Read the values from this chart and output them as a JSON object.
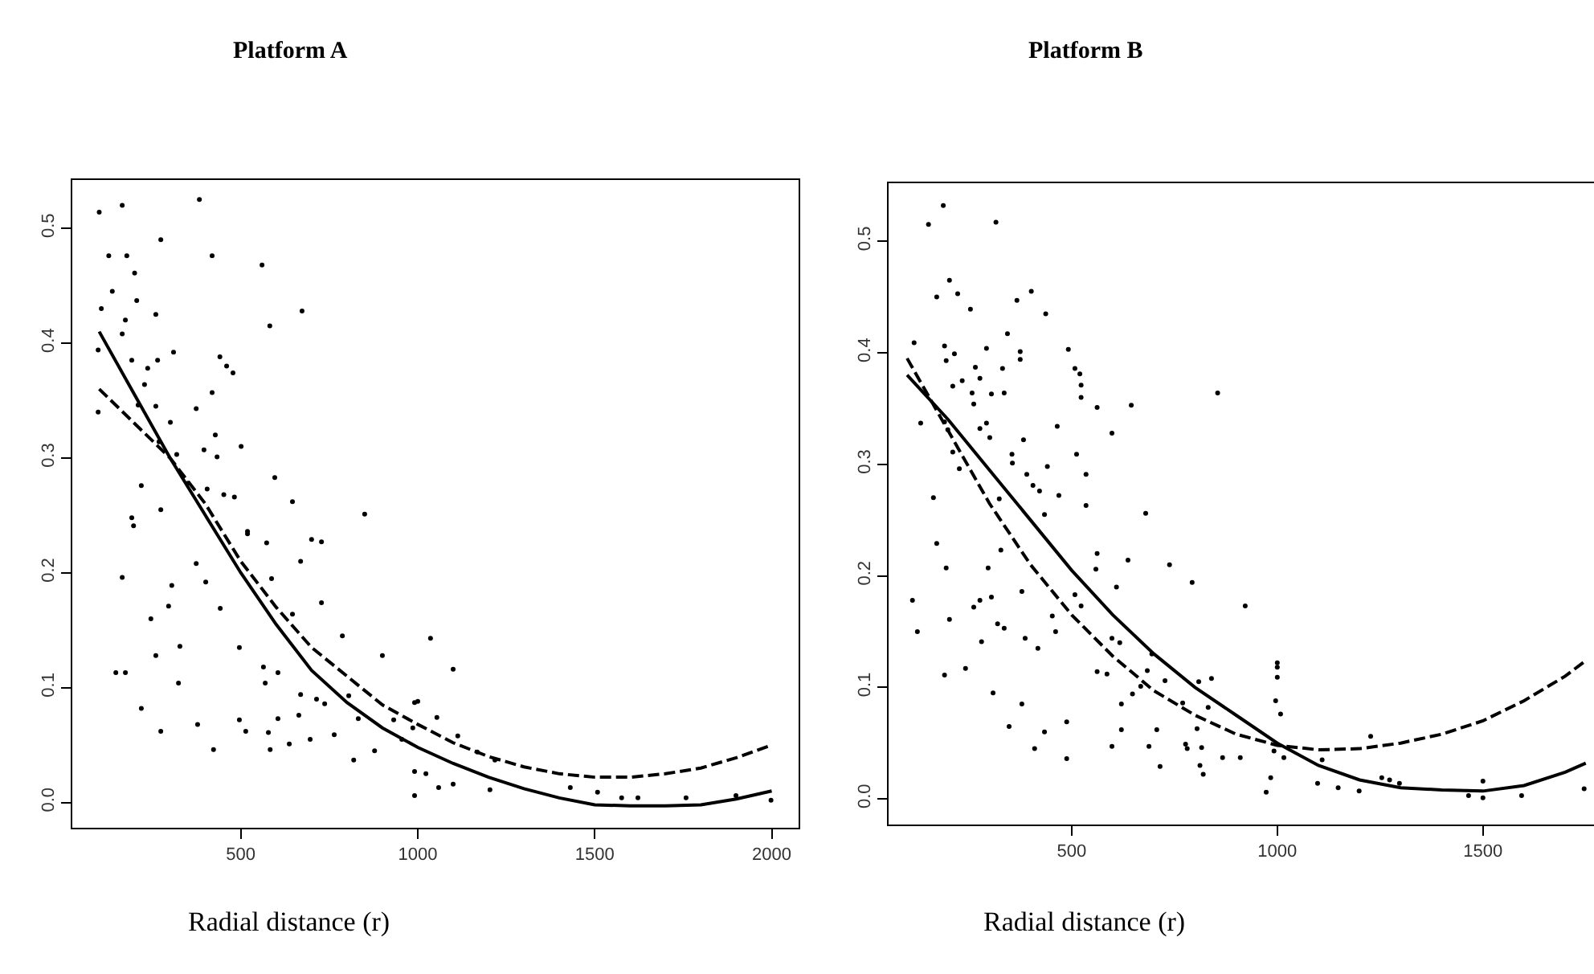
{
  "chart_data": [
    {
      "type": "scatter",
      "title": "Platform A",
      "xlabel": "Radial distance (r)",
      "xlim": [
        24,
        2076
      ],
      "ylim": [
        -0.022,
        0.542
      ],
      "xticks": [
        500,
        1000,
        1500,
        2000
      ],
      "yticks": [
        {
          "value": 0,
          "label": "0.0"
        },
        0.1,
        0.2,
        0.3,
        0.4,
        0.5
      ],
      "series": [
        {
          "marker": "circle",
          "color": "#000000",
          "x": [
            100,
            165,
            383,
            274,
            127,
            178,
            419,
            560,
            200,
            137,
            206,
            673,
            106,
            174,
            260,
            582,
            97,
            165,
            192,
            310,
            265,
            237,
            441,
            478,
            460,
            228,
            419,
            210,
            260,
            97,
            374,
            301,
            428,
            269,
            396,
            501,
            433,
            319,
            596,
            452,
            482,
            405,
            219,
            351,
            646,
            850,
            197,
            192,
            274,
            519,
            573,
            700,
            728,
            165,
            305,
            296,
            246,
            328,
            260,
            147,
            174,
            324,
            219,
            274,
            401,
            374,
            442,
            496,
            519,
            587,
            669,
            728,
            787,
            900,
            564,
            605,
            569,
            646,
            378,
            423,
            496,
            514,
            578,
            605,
            664,
            637,
            696,
            714,
            737,
            764,
            805,
            832,
            819,
            878,
            932,
            955,
            991,
            669,
            583,
            1036,
            1100,
            1000,
            1054,
            986,
            1113,
            991,
            1023,
            1059,
            1100,
            991,
            1204,
            1168,
            1218,
            1431,
            1508,
            1622,
            1758,
            1998,
            1576,
            1899
          ],
          "values": [
            0.514,
            0.52,
            0.525,
            0.49,
            0.476,
            0.476,
            0.476,
            0.468,
            0.461,
            0.445,
            0.437,
            0.428,
            0.43,
            0.42,
            0.425,
            0.415,
            0.394,
            0.408,
            0.385,
            0.392,
            0.385,
            0.378,
            0.388,
            0.374,
            0.38,
            0.364,
            0.357,
            0.346,
            0.345,
            0.34,
            0.343,
            0.331,
            0.32,
            0.314,
            0.307,
            0.31,
            0.301,
            0.303,
            0.283,
            0.268,
            0.266,
            0.273,
            0.276,
            0.278,
            0.262,
            0.251,
            0.241,
            0.248,
            0.255,
            0.236,
            0.226,
            0.229,
            0.227,
            0.196,
            0.189,
            0.171,
            0.16,
            0.136,
            0.128,
            0.113,
            0.113,
            0.104,
            0.082,
            0.062,
            0.192,
            0.208,
            0.169,
            0.135,
            0.234,
            0.195,
            0.21,
            0.174,
            0.145,
            0.128,
            0.118,
            0.113,
            0.104,
            0.164,
            0.068,
            0.046,
            0.072,
            0.062,
            0.061,
            0.073,
            0.076,
            0.051,
            0.055,
            0.09,
            0.086,
            0.059,
            0.093,
            0.073,
            0.037,
            0.045,
            0.072,
            0.055,
            0.087,
            0.094,
            0.046,
            0.143,
            0.116,
            0.088,
            0.074,
            0.065,
            0.058,
            0.027,
            0.025,
            0.013,
            0.016,
            0.006,
            0.011,
            0.044,
            0.037,
            0.013,
            0.009,
            0.004,
            0.004,
            0.002,
            0.004,
            0.006
          ]
        },
        {
          "type": "line",
          "color": "#000000",
          "line_style": "solid",
          "x": [
            100,
            200,
            300,
            400,
            500,
            600,
            700,
            800,
            900,
            1000,
            1100,
            1200,
            1300,
            1400,
            1500,
            1600,
            1700,
            1800,
            1900,
            2000
          ],
          "values": [
            0.41,
            0.355,
            0.3,
            0.25,
            0.2,
            0.155,
            0.115,
            0.087,
            0.065,
            0.048,
            0.034,
            0.022,
            0.012,
            0.004,
            -0.002,
            -0.003,
            -0.003,
            -0.002,
            0.003,
            0.01
          ]
        },
        {
          "type": "line",
          "color": "#000000",
          "line_style": "dashed",
          "x": [
            100,
            200,
            300,
            400,
            500,
            600,
            700,
            800,
            900,
            1000,
            1100,
            1200,
            1300,
            1400,
            1500,
            1600,
            1700,
            1800,
            1900,
            2000
          ],
          "values": [
            0.36,
            0.33,
            0.3,
            0.26,
            0.21,
            0.17,
            0.135,
            0.11,
            0.085,
            0.068,
            0.052,
            0.04,
            0.031,
            0.025,
            0.022,
            0.022,
            0.025,
            0.03,
            0.039,
            0.05
          ]
        }
      ]
    },
    {
      "type": "scatter",
      "title": "Platform B",
      "xlabel": "Radial distance (r)",
      "xlim": [
        55,
        1770
      ],
      "ylim": [
        -0.023,
        0.552
      ],
      "xticks": [
        500,
        1000,
        1500
      ],
      "yticks": [
        {
          "value": 0,
          "label": "0.0"
        },
        0.1,
        0.2,
        0.3,
        0.4,
        0.5
      ],
      "series": [
        {
          "marker": "circle",
          "color": "#000000",
          "x": [
            188,
            152,
            316,
            172,
            203,
            223,
            254,
            367,
            402,
            437,
            117,
            191,
            195,
            215,
            293,
            344,
            375,
            375,
            492,
            508,
            520,
            523,
            523,
            562,
            645,
            855,
            598,
            512,
            535,
            535,
            680,
            465,
            441,
            469,
            391,
            406,
            383,
            355,
            356,
            133,
            164,
            172,
            234,
            266,
            277,
            258,
            305,
            262,
            332,
            336,
            293,
            277,
            301,
            211,
            191,
            199,
            211,
            227,
            324,
            422,
            434,
            195,
            113,
            125,
            203,
            191,
            242,
            262,
            277,
            281,
            305,
            297,
            320,
            336,
            328,
            379,
            387,
            418,
            309,
            379,
            348,
            410,
            434,
            488,
            488,
            453,
            461,
            508,
            523,
            562,
            559,
            609,
            598,
            562,
            586,
            617,
            637,
            621,
            621,
            598,
            648,
            668,
            684,
            695,
            707,
            688,
            738,
            727,
            715,
            770,
            777,
            793,
            805,
            809,
            781,
            922,
            1000,
            1000,
            1000,
            996,
            1008,
            840,
            832,
            816,
            820,
            812,
            867,
            910,
            984,
            973,
            992,
            1016,
            1098,
            1109,
            1148,
            1199,
            1227,
            1254,
            1273,
            1297,
            1465,
            1500,
            1500,
            1594,
            1746
          ],
          "values": [
            0.532,
            0.515,
            0.517,
            0.45,
            0.465,
            0.453,
            0.439,
            0.447,
            0.455,
            0.435,
            0.409,
            0.406,
            0.393,
            0.399,
            0.404,
            0.417,
            0.401,
            0.394,
            0.403,
            0.386,
            0.381,
            0.371,
            0.36,
            0.351,
            0.353,
            0.364,
            0.328,
            0.309,
            0.291,
            0.263,
            0.256,
            0.334,
            0.298,
            0.272,
            0.291,
            0.281,
            0.322,
            0.309,
            0.301,
            0.337,
            0.27,
            0.229,
            0.375,
            0.387,
            0.377,
            0.364,
            0.363,
            0.354,
            0.386,
            0.364,
            0.337,
            0.332,
            0.324,
            0.37,
            0.338,
            0.331,
            0.311,
            0.296,
            0.269,
            0.276,
            0.255,
            0.207,
            0.178,
            0.15,
            0.161,
            0.111,
            0.117,
            0.172,
            0.178,
            0.141,
            0.181,
            0.207,
            0.157,
            0.153,
            0.223,
            0.186,
            0.144,
            0.135,
            0.095,
            0.085,
            0.065,
            0.045,
            0.06,
            0.069,
            0.036,
            0.164,
            0.15,
            0.183,
            0.173,
            0.22,
            0.206,
            0.19,
            0.144,
            0.114,
            0.112,
            0.14,
            0.214,
            0.085,
            0.062,
            0.047,
            0.094,
            0.101,
            0.115,
            0.13,
            0.062,
            0.047,
            0.21,
            0.106,
            0.029,
            0.086,
            0.049,
            0.194,
            0.063,
            0.105,
            0.045,
            0.173,
            0.122,
            0.118,
            0.109,
            0.088,
            0.076,
            0.108,
            0.082,
            0.046,
            0.022,
            0.03,
            0.037,
            0.037,
            0.019,
            0.006,
            0.043,
            0.037,
            0.014,
            0.035,
            0.01,
            0.007,
            0.056,
            0.019,
            0.017,
            0.014,
            0.003,
            0.016,
            0.001,
            0.003,
            0.009
          ]
        },
        {
          "type": "line",
          "color": "#000000",
          "line_style": "solid",
          "x": [
            100,
            200,
            300,
            400,
            500,
            600,
            700,
            800,
            900,
            1000,
            1100,
            1200,
            1300,
            1400,
            1500,
            1600,
            1700,
            1750
          ],
          "values": [
            0.38,
            0.34,
            0.295,
            0.25,
            0.205,
            0.165,
            0.13,
            0.1,
            0.075,
            0.05,
            0.03,
            0.017,
            0.01,
            0.008,
            0.007,
            0.012,
            0.024,
            0.032
          ]
        },
        {
          "type": "line",
          "color": "#000000",
          "line_style": "dashed",
          "x": [
            100,
            200,
            300,
            400,
            500,
            600,
            700,
            800,
            900,
            1000,
            1100,
            1200,
            1300,
            1400,
            1500,
            1600,
            1700,
            1750
          ],
          "values": [
            0.395,
            0.33,
            0.265,
            0.21,
            0.165,
            0.128,
            0.097,
            0.075,
            0.058,
            0.048,
            0.044,
            0.045,
            0.05,
            0.058,
            0.07,
            0.088,
            0.11,
            0.124
          ]
        }
      ]
    }
  ]
}
